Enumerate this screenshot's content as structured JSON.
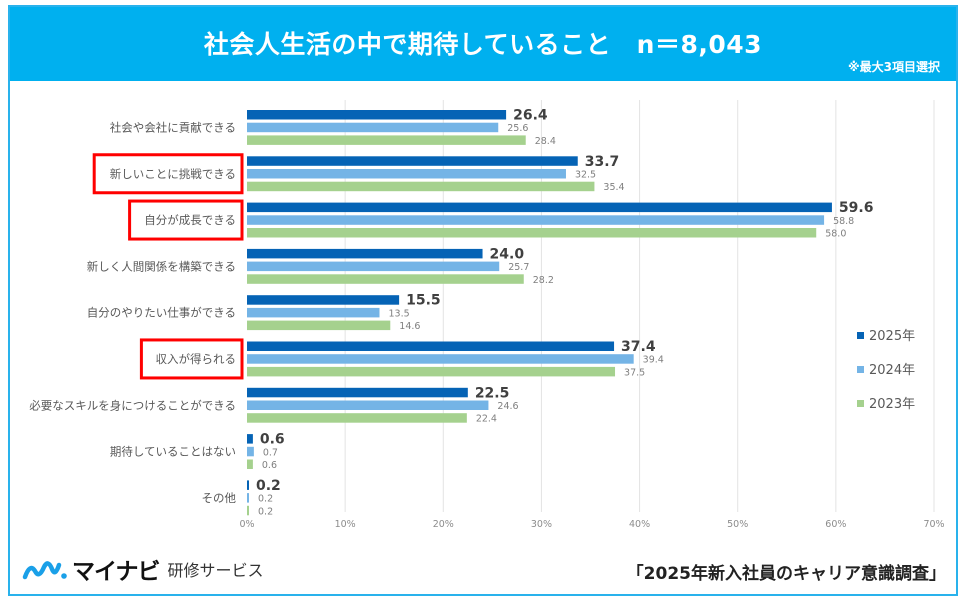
{
  "header": {
    "title": "社会人生活の中で期待していること　n＝8,043",
    "note": "※最大3項目選択"
  },
  "footer": {
    "logo_brand": "マイナビ",
    "logo_service": "研修サービス",
    "source": "「2025年新入社員のキャリア意識調査」"
  },
  "colors": {
    "header_bg": "#00b0ef",
    "frame_border": "#29b2ec",
    "highlight_box": "#ff0000",
    "series_2025": "#0563b5",
    "series_2024": "#74b4e6",
    "series_2023": "#a5d18e"
  },
  "chart_data": {
    "type": "bar",
    "orientation": "horizontal",
    "title": "社会人生活の中で期待していること　n＝8,043",
    "subtitle": "※最大3項目選択",
    "xlabel": "",
    "ylabel": "",
    "unit": "%",
    "xlim": [
      0,
      70
    ],
    "x_ticks": [
      "0%",
      "10%",
      "20%",
      "30%",
      "40%",
      "50%",
      "60%",
      "70%"
    ],
    "grid": true,
    "legend_position": "right",
    "categories": [
      "社会や会社に貢献できる",
      "新しいことに挑戦できる",
      "自分が成長できる",
      "新しく人間関係を構築できる",
      "自分のやりたい仕事ができる",
      "収入が得られる",
      "必要なスキルを身につけることができる",
      "期待していることはない",
      "その他"
    ],
    "highlighted_categories": [
      "新しいことに挑戦できる",
      "自分が成長できる",
      "収入が得られる"
    ],
    "series": [
      {
        "name": "2025年",
        "values": [
          26.4,
          33.7,
          59.6,
          24.0,
          15.5,
          37.4,
          22.5,
          0.6,
          0.2
        ]
      },
      {
        "name": "2024年",
        "values": [
          25.6,
          32.5,
          58.8,
          25.7,
          13.5,
          39.4,
          24.6,
          0.7,
          0.2
        ]
      },
      {
        "name": "2023年",
        "values": [
          28.4,
          35.4,
          58.0,
          28.2,
          14.6,
          37.5,
          22.4,
          0.6,
          0.2
        ]
      }
    ]
  }
}
